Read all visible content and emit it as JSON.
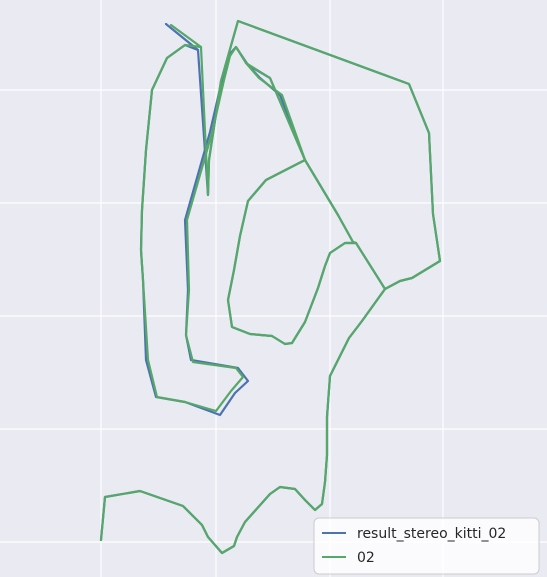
{
  "chart_data": {
    "type": "line",
    "title": "",
    "xlabel": "",
    "ylabel": "",
    "background_color": "#eaeaf2",
    "grid": true,
    "grid_color": "#ffffff",
    "legend_position": "lower-right",
    "series": [
      {
        "name": "result_stereo_kitti_02",
        "color": "#4c72b0",
        "segments": [
          {
            "x": [
              101,
              105,
              140,
              183,
              202,
              208,
              222,
              234,
              237,
              245,
              270,
              280,
              295,
              305,
              315,
              322,
              325,
              327,
              327,
              330,
              349,
              362,
              385,
              400,
              412,
              440,
              433,
              429,
              409,
              238,
              221,
              209,
              208,
              198,
              166
            ],
            "y": [
              540,
              497,
              491,
              506,
              525,
              537,
              553,
              546,
              537,
              522,
              494,
              487,
              489,
              500,
              510,
              504,
              482,
              455,
              417,
              376,
              338,
              321,
              289,
              281,
              278,
              261,
              214,
              133,
              84,
              21,
              81,
              160,
              195,
              50,
              24
            ]
          },
          {
            "x": [
              198,
              185,
              167,
              152,
              146,
              142,
              141,
              143,
              146,
              156,
              185,
              220,
              235,
              248,
              238,
              191,
              186,
              188,
              185,
              210,
              222,
              229,
              236,
              248,
              260,
              280,
              305,
              323,
              338,
              353,
              356,
              385
            ],
            "y": [
              50,
              45,
              58,
              90,
              150,
              210,
              250,
              280,
              360,
              397,
              402,
              415,
              393,
              381,
              368,
              360,
              335,
              290,
              220,
              132,
              80,
              55,
              47,
              65,
              78,
              95,
              160,
              190,
              215,
              242,
              243,
              289
            ]
          },
          {
            "x": [
              248,
              270,
              305,
              266,
              248,
              240,
              234,
              228,
              232,
              250,
              272,
              285,
              292,
              305,
              318,
              325,
              330,
              345,
              356
            ],
            "y": [
              65,
              78,
              160,
              180,
              201,
              236,
              270,
              300,
              327,
              334,
              336,
              344,
              343,
              322,
              288,
              266,
              253,
              243,
              243
            ]
          }
        ]
      },
      {
        "name": "02",
        "color": "#55a868",
        "segments": [
          {
            "x": [
              101,
              105,
              140,
              183,
              202,
              208,
              222,
              234,
              237,
              245,
              270,
              280,
              295,
              305,
              315,
              322,
              325,
              327,
              327,
              330,
              349,
              362,
              385,
              400,
              412,
              440,
              433,
              429,
              409,
              238,
              221,
              209,
              208,
              201,
              171
            ],
            "y": [
              540,
              497,
              491,
              506,
              525,
              537,
              553,
              546,
              537,
              522,
              494,
              487,
              489,
              500,
              510,
              504,
              482,
              455,
              417,
              376,
              338,
              321,
              289,
              281,
              278,
              261,
              214,
              133,
              84,
              21,
              81,
              160,
              195,
              47,
              25
            ]
          },
          {
            "x": [
              201,
              185,
              167,
              152,
              146,
              142,
              141,
              143,
              148,
              157,
              185,
              216,
              231,
              243,
              236,
              193,
              186,
              189,
              187,
              212,
              224,
              230,
              236,
              246,
              259,
              282,
              305,
              323,
              338,
              353,
              356,
              385
            ],
            "y": [
              47,
              45,
              58,
              90,
              150,
              210,
              250,
              280,
              360,
              397,
              402,
              411,
              391,
              377,
              368,
              362,
              335,
              290,
              220,
              133,
              80,
              56,
              47,
              63,
              78,
              95,
              160,
              190,
              215,
              242,
              243,
              289
            ]
          },
          {
            "x": [
              246,
              270,
              305,
              266,
              248,
              240,
              234,
              228,
              232,
              250,
              272,
              285,
              292,
              305,
              318,
              325,
              330,
              345,
              356
            ],
            "y": [
              63,
              78,
              160,
              180,
              201,
              236,
              270,
              300,
              327,
              334,
              336,
              344,
              343,
              322,
              288,
              266,
              253,
              243,
              243
            ]
          }
        ]
      }
    ]
  }
}
